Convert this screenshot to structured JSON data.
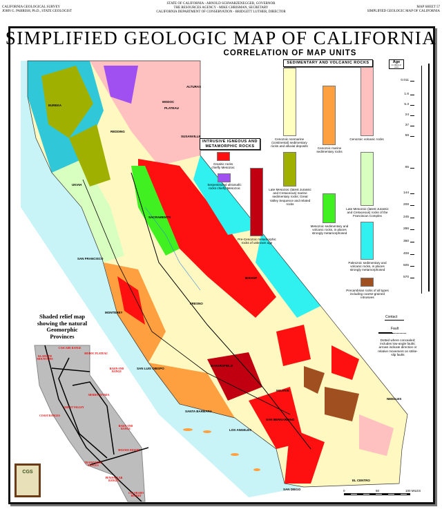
{
  "header": {
    "left": [
      "CALIFORNIA GEOLOGICAL SURVEY",
      "JOHN G. PARRISH, Ph.D., STATE GEOLOGIST"
    ],
    "center": [
      "STATE OF CALIFORNIA - ARNOLD SCHWARZENEGGER, GOVERNOR",
      "THE RESOURCES AGENCY - MIKE CHRISMAN, SECRETARY",
      "CALIFORNIA DEPARTMENT OF CONSERVATION - BRIDGETT LUTHER, DIRECTOR"
    ],
    "right": [
      "MAP SHEET 57",
      "SIMPLIFIED GEOLOGIC MAP OF CALIFORNIA"
    ]
  },
  "title": "SIMPLIFIED GEOLOGIC MAP OF CALIFORNIA",
  "subtitle": "CORRELATION OF MAP UNITS",
  "legend": {
    "sedimentary_header": "SEDIMENTARY AND VOLCANIC ROCKS",
    "intrusive_header": "INTRUSIVE IGNEOUS AND METAMORPHIC ROCKS",
    "units": [
      {
        "label": "Cenozoic nonmarine (continental) sedimentary rocks and alluvial deposits",
        "color": "#ffffc0"
      },
      {
        "label": "Cenozoic marine sedimentary rocks",
        "color": "#ffa040"
      },
      {
        "label": "Cenozoic volcanic rocks",
        "color": "#ffc0c0"
      },
      {
        "label": "Granitic rocks chiefly Mesozoic",
        "color": "#ff1010"
      },
      {
        "label": "Serpentinized ultramafic rocks chiefly Mesozoic",
        "color": "#a050f0"
      },
      {
        "label": "Pre-Cenozoic metamorphic rocks of unknown age",
        "color": "#c00010"
      },
      {
        "label": "Late Mesozoic (latest Jurassic and Cretaceous) marine sedimentary rocks; Great Valley Sequence and related rocks",
        "color": "#a0b000"
      },
      {
        "label": "Mesozoic sedimentary and volcanic rocks, in places strongly metamorphosed",
        "color": "#40f020"
      },
      {
        "label": "Late Mesozoic (latest Jurassic and Cretaceous) rocks of the Franciscan Complex",
        "color": "#d8ffc0"
      },
      {
        "label": "Paleozoic sedimentary and volcanic rocks, in places strongly metamorphosed",
        "color": "#30f0f0"
      },
      {
        "label": "Precambrian rocks of all types including coarse-grained intrusives",
        "color": "#a05020"
      }
    ],
    "age_header": "Age",
    "age_unit": "in millions of years",
    "ages": [
      "0.011",
      "1.6",
      "5.3",
      "24",
      "37",
      "58",
      "65",
      "144",
      "208",
      "245",
      "286",
      "360",
      "408",
      "505",
      "570"
    ],
    "contact_label": "Contact",
    "fault_label": "Fault",
    "fault_note": "Dotted where concealed; includes low-angle faults; arrows indicate direction or relative movement on strike-slip faults"
  },
  "map": {
    "cities": [
      "EUREKA",
      "REDDING",
      "UKIAH",
      "SACRAMENTO",
      "SAN FRANCISCO",
      "MONTEREY",
      "FRESNO",
      "BISHOP",
      "BAKERSFIELD",
      "SAN LUIS OBISPO",
      "SANTA BARBARA",
      "LOS ANGELES",
      "SAN BERNARDINO",
      "SAN DIEGO",
      "EL CENTRO",
      "NEEDLES",
      "MOJAVE",
      "ALTURAS",
      "SUSANVILLE",
      "MODOC",
      "PLATEAU"
    ],
    "scale": [
      "0",
      "50",
      "100 MILES"
    ]
  },
  "inset": {
    "title": [
      "Shaded relief map",
      "showing the natural",
      "Geomorphic",
      "Provinces"
    ],
    "provinces": [
      "KLAMATH MOUNTAINS",
      "CASCADE RANGE",
      "MODOC PLATEAU",
      "BASIN AND RANGE",
      "COAST RANGES",
      "GREAT VALLEY",
      "SIERRA NEVADA",
      "BASIN AND RANGE",
      "MOJAVE DESERT",
      "TRANSVERSE RANGES",
      "PENINSULAR RANGES",
      "COLORADO DESERT"
    ],
    "logo": "CGS"
  }
}
